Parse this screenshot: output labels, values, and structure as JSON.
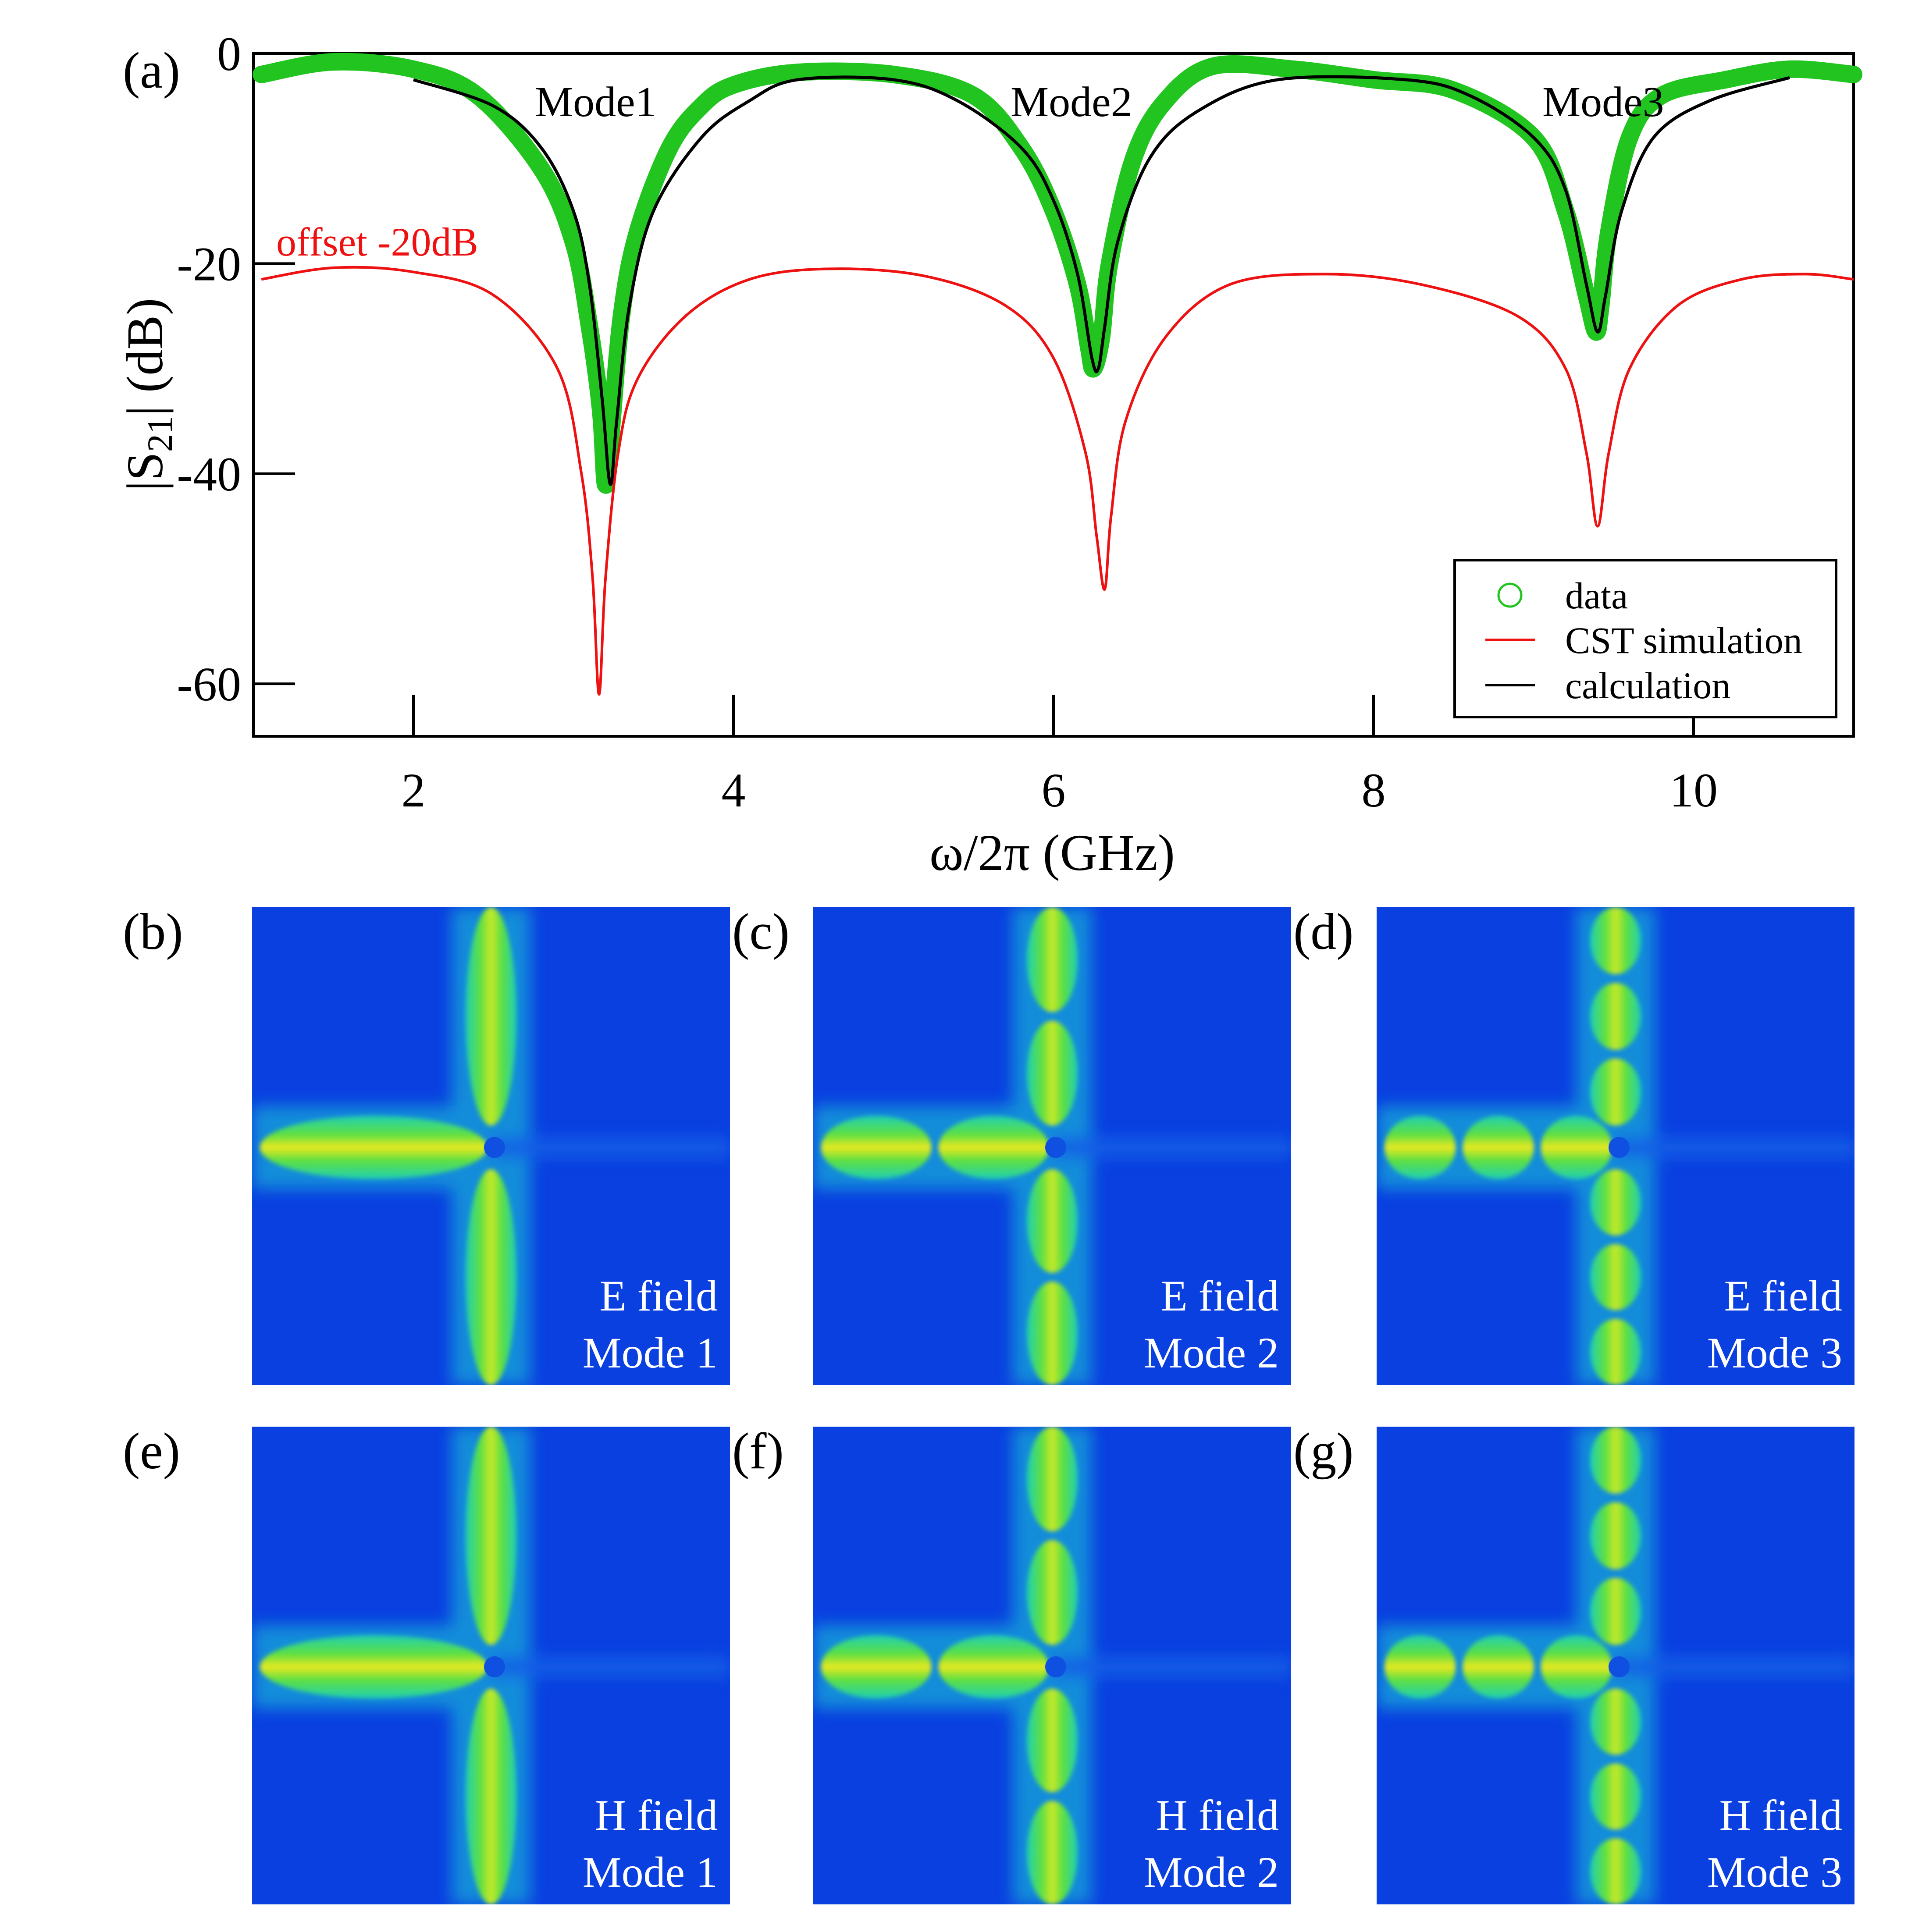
{
  "panel_a": {
    "label": "(a)",
    "offset_note": "offset -20dB",
    "mode_labels": [
      "Mode1",
      "Mode2",
      "Mode3"
    ],
    "legend": {
      "items": [
        {
          "label": "data",
          "marker": "circle",
          "color": "#22c51f"
        },
        {
          "label": "CST simulation",
          "marker": "line",
          "color": "#ee1111"
        },
        {
          "label": "calculation",
          "marker": "line",
          "color": "#000000"
        }
      ]
    }
  },
  "field_panels": [
    {
      "label": "(b)",
      "field": "E field",
      "mode": "Mode 1",
      "nodes": 1
    },
    {
      "label": "(c)",
      "field": "E field",
      "mode": "Mode 2",
      "nodes": 2
    },
    {
      "label": "(d)",
      "field": "E field",
      "mode": "Mode 3",
      "nodes": 3
    },
    {
      "label": "(e)",
      "field": "H field",
      "mode": "Mode 1",
      "nodes": 1
    },
    {
      "label": "(f)",
      "field": "H field",
      "mode": "Mode 2",
      "nodes": 2
    },
    {
      "label": "(g)",
      "field": "H field",
      "mode": "Mode 3",
      "nodes": 3
    }
  ],
  "colors": {
    "background_field": "#0a3fe0",
    "data": "#22c51f",
    "cst": "#ee1111",
    "calc": "#000000"
  },
  "chart_data": {
    "type": "line",
    "title": "",
    "xlabel": "ω/2π (GHz)",
    "ylabel": "|S21| (dB)",
    "xlim": [
      1,
      11
    ],
    "ylim": [
      -65,
      0
    ],
    "xticks": [
      2,
      4,
      6,
      8,
      10
    ],
    "yticks": [
      0,
      -20,
      -40,
      -60
    ],
    "legend_position": "bottom-right",
    "grid": false,
    "series": [
      {
        "name": "data",
        "style": "markers",
        "x": [
          1.05,
          1.5,
          2.0,
          2.4,
          2.8,
          3.0,
          3.1,
          3.17,
          3.2,
          3.23,
          3.3,
          3.4,
          3.6,
          3.8,
          4.0,
          4.4,
          5.0,
          5.5,
          5.8,
          6.0,
          6.15,
          6.22,
          6.25,
          6.3,
          6.35,
          6.5,
          6.7,
          7.0,
          7.5,
          8.0,
          8.5,
          9.0,
          9.2,
          9.33,
          9.39,
          9.42,
          9.47,
          9.6,
          9.8,
          10.2,
          10.6,
          11.0
        ],
        "y": [
          -2,
          -0.8,
          -1.5,
          -4,
          -11,
          -18,
          -26,
          -34,
          -41,
          -37,
          -25,
          -17,
          -9,
          -5,
          -3,
          -1.8,
          -2,
          -4,
          -9,
          -15,
          -22,
          -28,
          -30,
          -27,
          -20,
          -10,
          -4.5,
          -1.2,
          -1.5,
          -2.5,
          -3.5,
          -8,
          -15,
          -23,
          -26.5,
          -24,
          -17,
          -8,
          -4,
          -2.5,
          -1.5,
          -2
        ]
      },
      {
        "name": "CST simulation",
        "style": "line",
        "x": [
          1.05,
          1.5,
          2.0,
          2.5,
          2.9,
          3.05,
          3.12,
          3.16,
          3.2,
          3.28,
          3.4,
          3.7,
          4.1,
          4.6,
          5.2,
          5.7,
          6.0,
          6.2,
          6.27,
          6.32,
          6.36,
          6.45,
          6.7,
          7.1,
          7.7,
          8.3,
          8.9,
          9.2,
          9.33,
          9.4,
          9.47,
          9.6,
          9.9,
          10.3,
          10.7,
          11.0
        ],
        "y": [
          -21.5,
          -20.4,
          -20.8,
          -23,
          -30,
          -40,
          -50,
          -61,
          -50,
          -38,
          -31,
          -25,
          -21.5,
          -20.5,
          -21.2,
          -24,
          -29,
          -38,
          -46,
          -51,
          -44,
          -35,
          -27,
          -22,
          -21,
          -22,
          -25,
          -30,
          -38,
          -45,
          -38,
          -30,
          -24,
          -21.5,
          -21,
          -21.5
        ]
      },
      {
        "name": "calculation",
        "style": "line",
        "x": [
          2.0,
          2.5,
          2.8,
          3.0,
          3.1,
          3.18,
          3.23,
          3.27,
          3.35,
          3.5,
          3.8,
          4.1,
          4.4,
          5.0,
          5.4,
          5.8,
          6.0,
          6.15,
          6.24,
          6.28,
          6.32,
          6.4,
          6.6,
          6.9,
          7.4,
          8.2,
          8.6,
          9.0,
          9.2,
          9.33,
          9.4,
          9.45,
          9.55,
          9.75,
          10.1,
          10.6
        ],
        "y": [
          -2.5,
          -5,
          -9,
          -15,
          -22,
          -33,
          -41,
          -35,
          -24,
          -15,
          -8,
          -4.5,
          -2.5,
          -2.5,
          -4.5,
          -9,
          -14,
          -21,
          -29,
          -30,
          -26,
          -18,
          -10,
          -5.5,
          -2.5,
          -2.5,
          -4,
          -8,
          -13,
          -22,
          -26.5,
          -23,
          -15,
          -8,
          -4.5,
          -2.3
        ]
      }
    ]
  }
}
